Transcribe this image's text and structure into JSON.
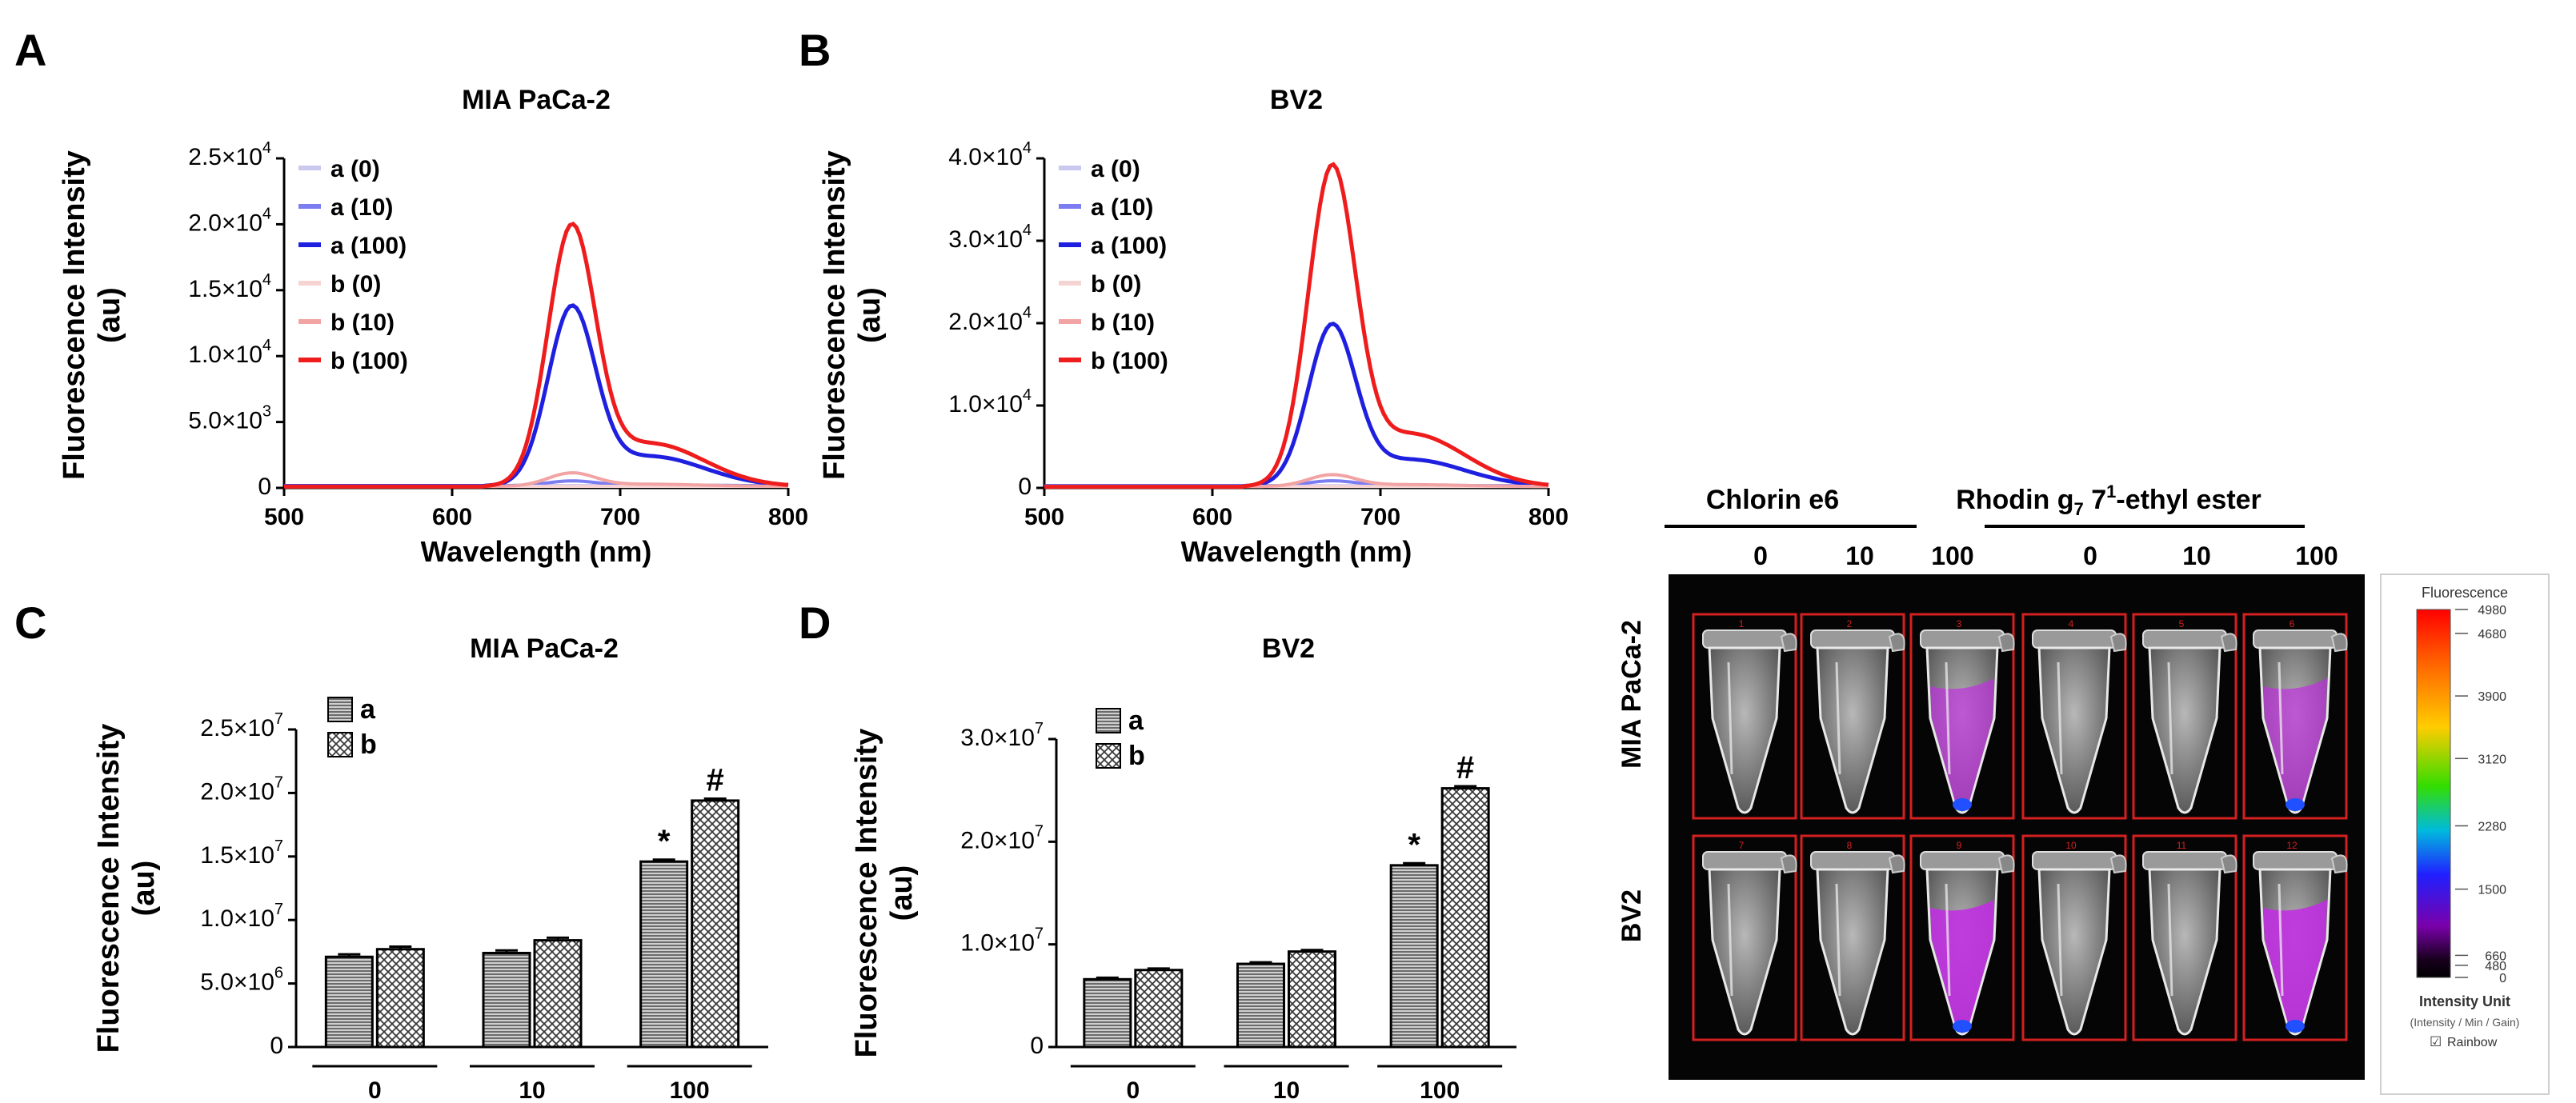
{
  "panel_letters": {
    "A": "A",
    "B": "B",
    "C": "C",
    "D": "D"
  },
  "chart_data": [
    {
      "id": "A",
      "type": "line",
      "title": "MIA PaCa-2",
      "xlabel": "Wavelength (nm)",
      "ylabel": [
        "Fluorescence Intensity",
        "(au)"
      ],
      "xlim": [
        500,
        800
      ],
      "ylim": [
        0,
        25000
      ],
      "xticks": [
        500,
        600,
        700,
        800
      ],
      "yticks": [
        {
          "v": 0,
          "m": "0",
          "e": ""
        },
        {
          "v": 5000,
          "m": "5.0×10",
          "e": "3"
        },
        {
          "v": 10000,
          "m": "1.0×10",
          "e": "4"
        },
        {
          "v": 15000,
          "m": "1.5×10",
          "e": "4"
        },
        {
          "v": 20000,
          "m": "2.0×10",
          "e": "4"
        },
        {
          "v": 25000,
          "m": "2.5×10",
          "e": "4"
        }
      ],
      "legend": "top-left",
      "series": [
        {
          "name": "a (0)",
          "color": "#c9c9ef",
          "peak": 0,
          "base": 180
        },
        {
          "name": "a (10)",
          "color": "#7d7df2",
          "peak": 350,
          "base": 170
        },
        {
          "name": "a (100)",
          "color": "#1f1fe0",
          "peak": 13200,
          "base": 140
        },
        {
          "name": "b (0)",
          "color": "#f7d4d4",
          "peak": 0,
          "base": 120
        },
        {
          "name": "b (10)",
          "color": "#f2a3a3",
          "peak": 1000,
          "base": 110
        },
        {
          "name": "b (100)",
          "color": "#ee1c1c",
          "peak": 19200,
          "base": 100
        }
      ]
    },
    {
      "id": "B",
      "type": "line",
      "title": "BV2",
      "xlabel": "Wavelength (nm)",
      "ylabel": [
        "Fluorescence Intensity",
        "(au)"
      ],
      "xlim": [
        500,
        800
      ],
      "ylim": [
        0,
        40000
      ],
      "xticks": [
        500,
        600,
        700,
        800
      ],
      "yticks": [
        {
          "v": 0,
          "m": "0",
          "e": ""
        },
        {
          "v": 10000,
          "m": "1.0×10",
          "e": "4"
        },
        {
          "v": 20000,
          "m": "2.0×10",
          "e": "4"
        },
        {
          "v": 30000,
          "m": "3.0×10",
          "e": "4"
        },
        {
          "v": 40000,
          "m": "4.0×10",
          "e": "4"
        }
      ],
      "legend": "top-left",
      "series": [
        {
          "name": "a (0)",
          "color": "#c9c9ef",
          "peak": 0,
          "base": 260
        },
        {
          "name": "a (10)",
          "color": "#7d7df2",
          "peak": 600,
          "base": 240
        },
        {
          "name": "a (100)",
          "color": "#1f1fe0",
          "peak": 19000,
          "base": 200
        },
        {
          "name": "b (0)",
          "color": "#f7d4d4",
          "peak": 0,
          "base": 180
        },
        {
          "name": "b (10)",
          "color": "#f2a3a3",
          "peak": 1400,
          "base": 160
        },
        {
          "name": "b (100)",
          "color": "#ee1c1c",
          "peak": 37700,
          "base": 140
        }
      ]
    },
    {
      "id": "C",
      "type": "bar",
      "title": "MIA PaCa-2",
      "ylabel": [
        "Fluorescence Intensity",
        "(au)"
      ],
      "ylim": [
        0,
        25000000
      ],
      "categories": [
        "0",
        "10",
        "100"
      ],
      "yticks": [
        {
          "v": 0,
          "m": "0",
          "e": ""
        },
        {
          "v": 5000000,
          "m": "5.0×10",
          "e": "6"
        },
        {
          "v": 10000000,
          "m": "1.0×10",
          "e": "7"
        },
        {
          "v": 15000000,
          "m": "1.5×10",
          "e": "7"
        },
        {
          "v": 20000000,
          "m": "2.0×10",
          "e": "7"
        },
        {
          "v": 25000000,
          "m": "2.5×10",
          "e": "7"
        }
      ],
      "legend": "top-left",
      "series": [
        {
          "name": "a",
          "values": [
            7100000,
            7400000,
            14600000
          ],
          "errors": [
            200000,
            200000,
            150000
          ],
          "marks": [
            "",
            "",
            "*"
          ]
        },
        {
          "name": "b",
          "values": [
            7700000,
            8400000,
            19400000
          ],
          "errors": [
            200000,
            200000,
            150000
          ],
          "marks": [
            "",
            "",
            "#"
          ]
        }
      ]
    },
    {
      "id": "D",
      "type": "bar",
      "title": "BV2",
      "ylabel": [
        "Fluorescence Intensity",
        "(au)"
      ],
      "ylim": [
        0,
        30000000
      ],
      "categories": [
        "0",
        "10",
        "100"
      ],
      "yticks": [
        {
          "v": 0,
          "m": "0",
          "e": ""
        },
        {
          "v": 10000000,
          "m": "1.0×10",
          "e": "7"
        },
        {
          "v": 20000000,
          "m": "2.0×10",
          "e": "7"
        },
        {
          "v": 30000000,
          "m": "3.0×10",
          "e": "7"
        }
      ],
      "legend": "top-left",
      "series": [
        {
          "name": "a",
          "values": [
            6600000,
            8100000,
            17700000
          ],
          "errors": [
            150000,
            150000,
            200000
          ],
          "marks": [
            "",
            "",
            "*"
          ]
        },
        {
          "name": "b",
          "values": [
            7500000,
            9300000,
            25200000
          ],
          "errors": [
            150000,
            150000,
            200000
          ],
          "marks": [
            "",
            "",
            "#"
          ]
        }
      ]
    }
  ],
  "imaging": {
    "groups": [
      {
        "label": "Chlorin e6",
        "concentrations": [
          "0",
          "10",
          "100"
        ]
      },
      {
        "label_parts": [
          "Rhodin g",
          "7",
          " 7",
          "1",
          "-ethyl ester"
        ],
        "concentrations": [
          "0",
          "10",
          "100"
        ]
      }
    ],
    "rows": [
      "MIA PaCa-2",
      "BV2"
    ],
    "roi_numbers": [
      "1",
      "2",
      "3",
      "4",
      "5",
      "6",
      "7",
      "8",
      "9",
      "10",
      "11",
      "12"
    ],
    "colorbar": {
      "title": "Fluorescence",
      "ticks": [
        "4980",
        "4680",
        "3900",
        "3120",
        "2280",
        "1500",
        "660",
        "480",
        "0"
      ],
      "unit_label": "Intensity Unit",
      "unit_sub": "(Intensity / Min / Gain)",
      "checkbox_label": "Rainbow",
      "checkbox_mark": "☑"
    }
  },
  "colors": {
    "roi": "#d42020",
    "gel_magenta": "#c030e0",
    "gel_blue": "#2050ff"
  }
}
